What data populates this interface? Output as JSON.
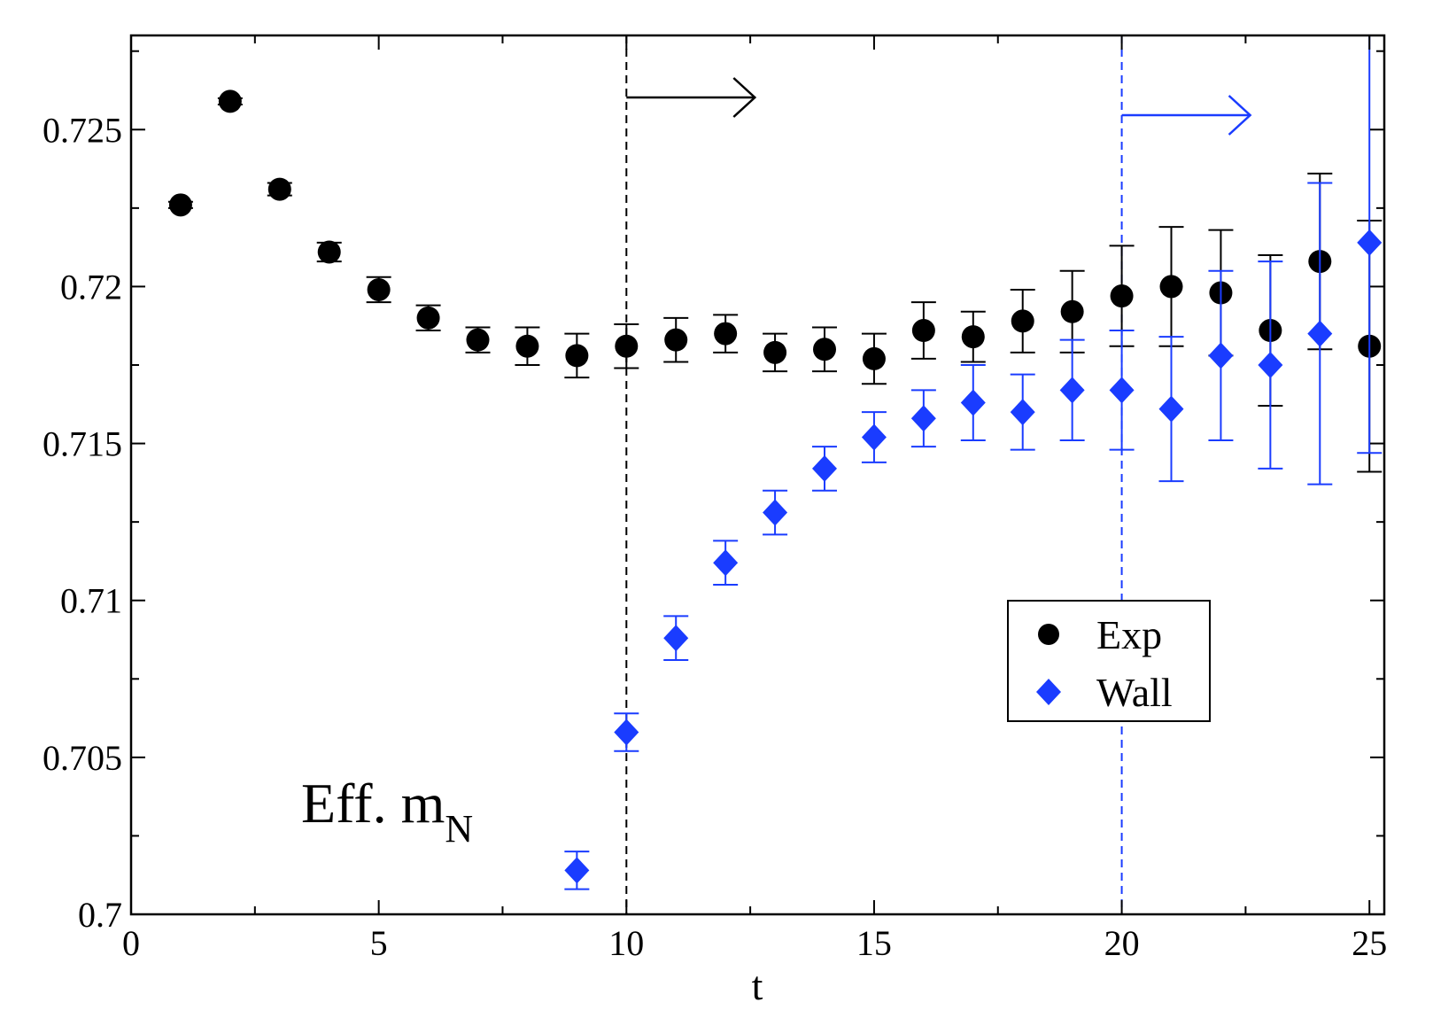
{
  "chart_data": {
    "type": "scatter",
    "title": "",
    "xlabel": "t",
    "ylabel": "",
    "xlim": [
      0,
      25.3
    ],
    "ylim": [
      0.7,
      0.728
    ],
    "x_ticks": [
      0,
      5,
      10,
      15,
      20,
      25
    ],
    "x_tick_labels": [
      "0",
      "5",
      "10",
      "15",
      "20",
      "25"
    ],
    "y_ticks": [
      0.7,
      0.705,
      0.71,
      0.715,
      0.72,
      0.725
    ],
    "y_tick_labels": [
      "0.7",
      "0.705",
      "0.71",
      "0.715",
      "0.72",
      "0.725"
    ],
    "annotation": {
      "main": "Eff. m",
      "subscript": "N"
    },
    "vertical_lines": [
      {
        "x": 10,
        "color": "#000000",
        "style": "dashed",
        "arrow": "right"
      },
      {
        "x": 20,
        "color": "#1a3cff",
        "style": "dashed",
        "arrow": "right"
      }
    ],
    "legend": {
      "position": "lower-right",
      "entries": [
        "Exp",
        "Wall"
      ]
    },
    "series": [
      {
        "name": "Exp",
        "marker": "circle",
        "color": "#000000",
        "x": [
          1,
          2,
          3,
          4,
          5,
          6,
          7,
          8,
          9,
          10,
          11,
          12,
          13,
          14,
          15,
          16,
          17,
          18,
          19,
          20,
          21,
          22,
          23,
          24,
          25
        ],
        "y": [
          0.7226,
          0.7259,
          0.7231,
          0.7211,
          0.7199,
          0.719,
          0.7183,
          0.7181,
          0.7178,
          0.7181,
          0.7183,
          0.7185,
          0.7179,
          0.718,
          0.7177,
          0.7186,
          0.7184,
          0.7189,
          0.7192,
          0.7197,
          0.72,
          0.7198,
          0.7186,
          0.7208,
          0.7181
        ],
        "err": [
          0.0001,
          0.0001,
          0.0002,
          0.0003,
          0.0004,
          0.0004,
          0.0004,
          0.0006,
          0.0007,
          0.0007,
          0.0007,
          0.0006,
          0.0006,
          0.0007,
          0.0008,
          0.0009,
          0.0008,
          0.001,
          0.0013,
          0.0016,
          0.0019,
          0.002,
          0.0024,
          0.0028,
          0.004
        ]
      },
      {
        "name": "Wall",
        "marker": "diamond",
        "color": "#1a3cff",
        "x": [
          9,
          10,
          11,
          12,
          13,
          14,
          15,
          16,
          17,
          18,
          19,
          20,
          21,
          22,
          23,
          24,
          25
        ],
        "y": [
          0.7014,
          0.7058,
          0.7088,
          0.7112,
          0.7128,
          0.7142,
          0.7152,
          0.7158,
          0.7163,
          0.716,
          0.7167,
          0.7167,
          0.7161,
          0.7178,
          0.7175,
          0.7185,
          0.7214
        ],
        "err": [
          0.0006,
          0.0006,
          0.0007,
          0.0007,
          0.0007,
          0.0007,
          0.0008,
          0.0009,
          0.0012,
          0.0012,
          0.0016,
          0.0019,
          0.0023,
          0.0027,
          0.0033,
          0.0048,
          0.0067
        ]
      }
    ]
  }
}
